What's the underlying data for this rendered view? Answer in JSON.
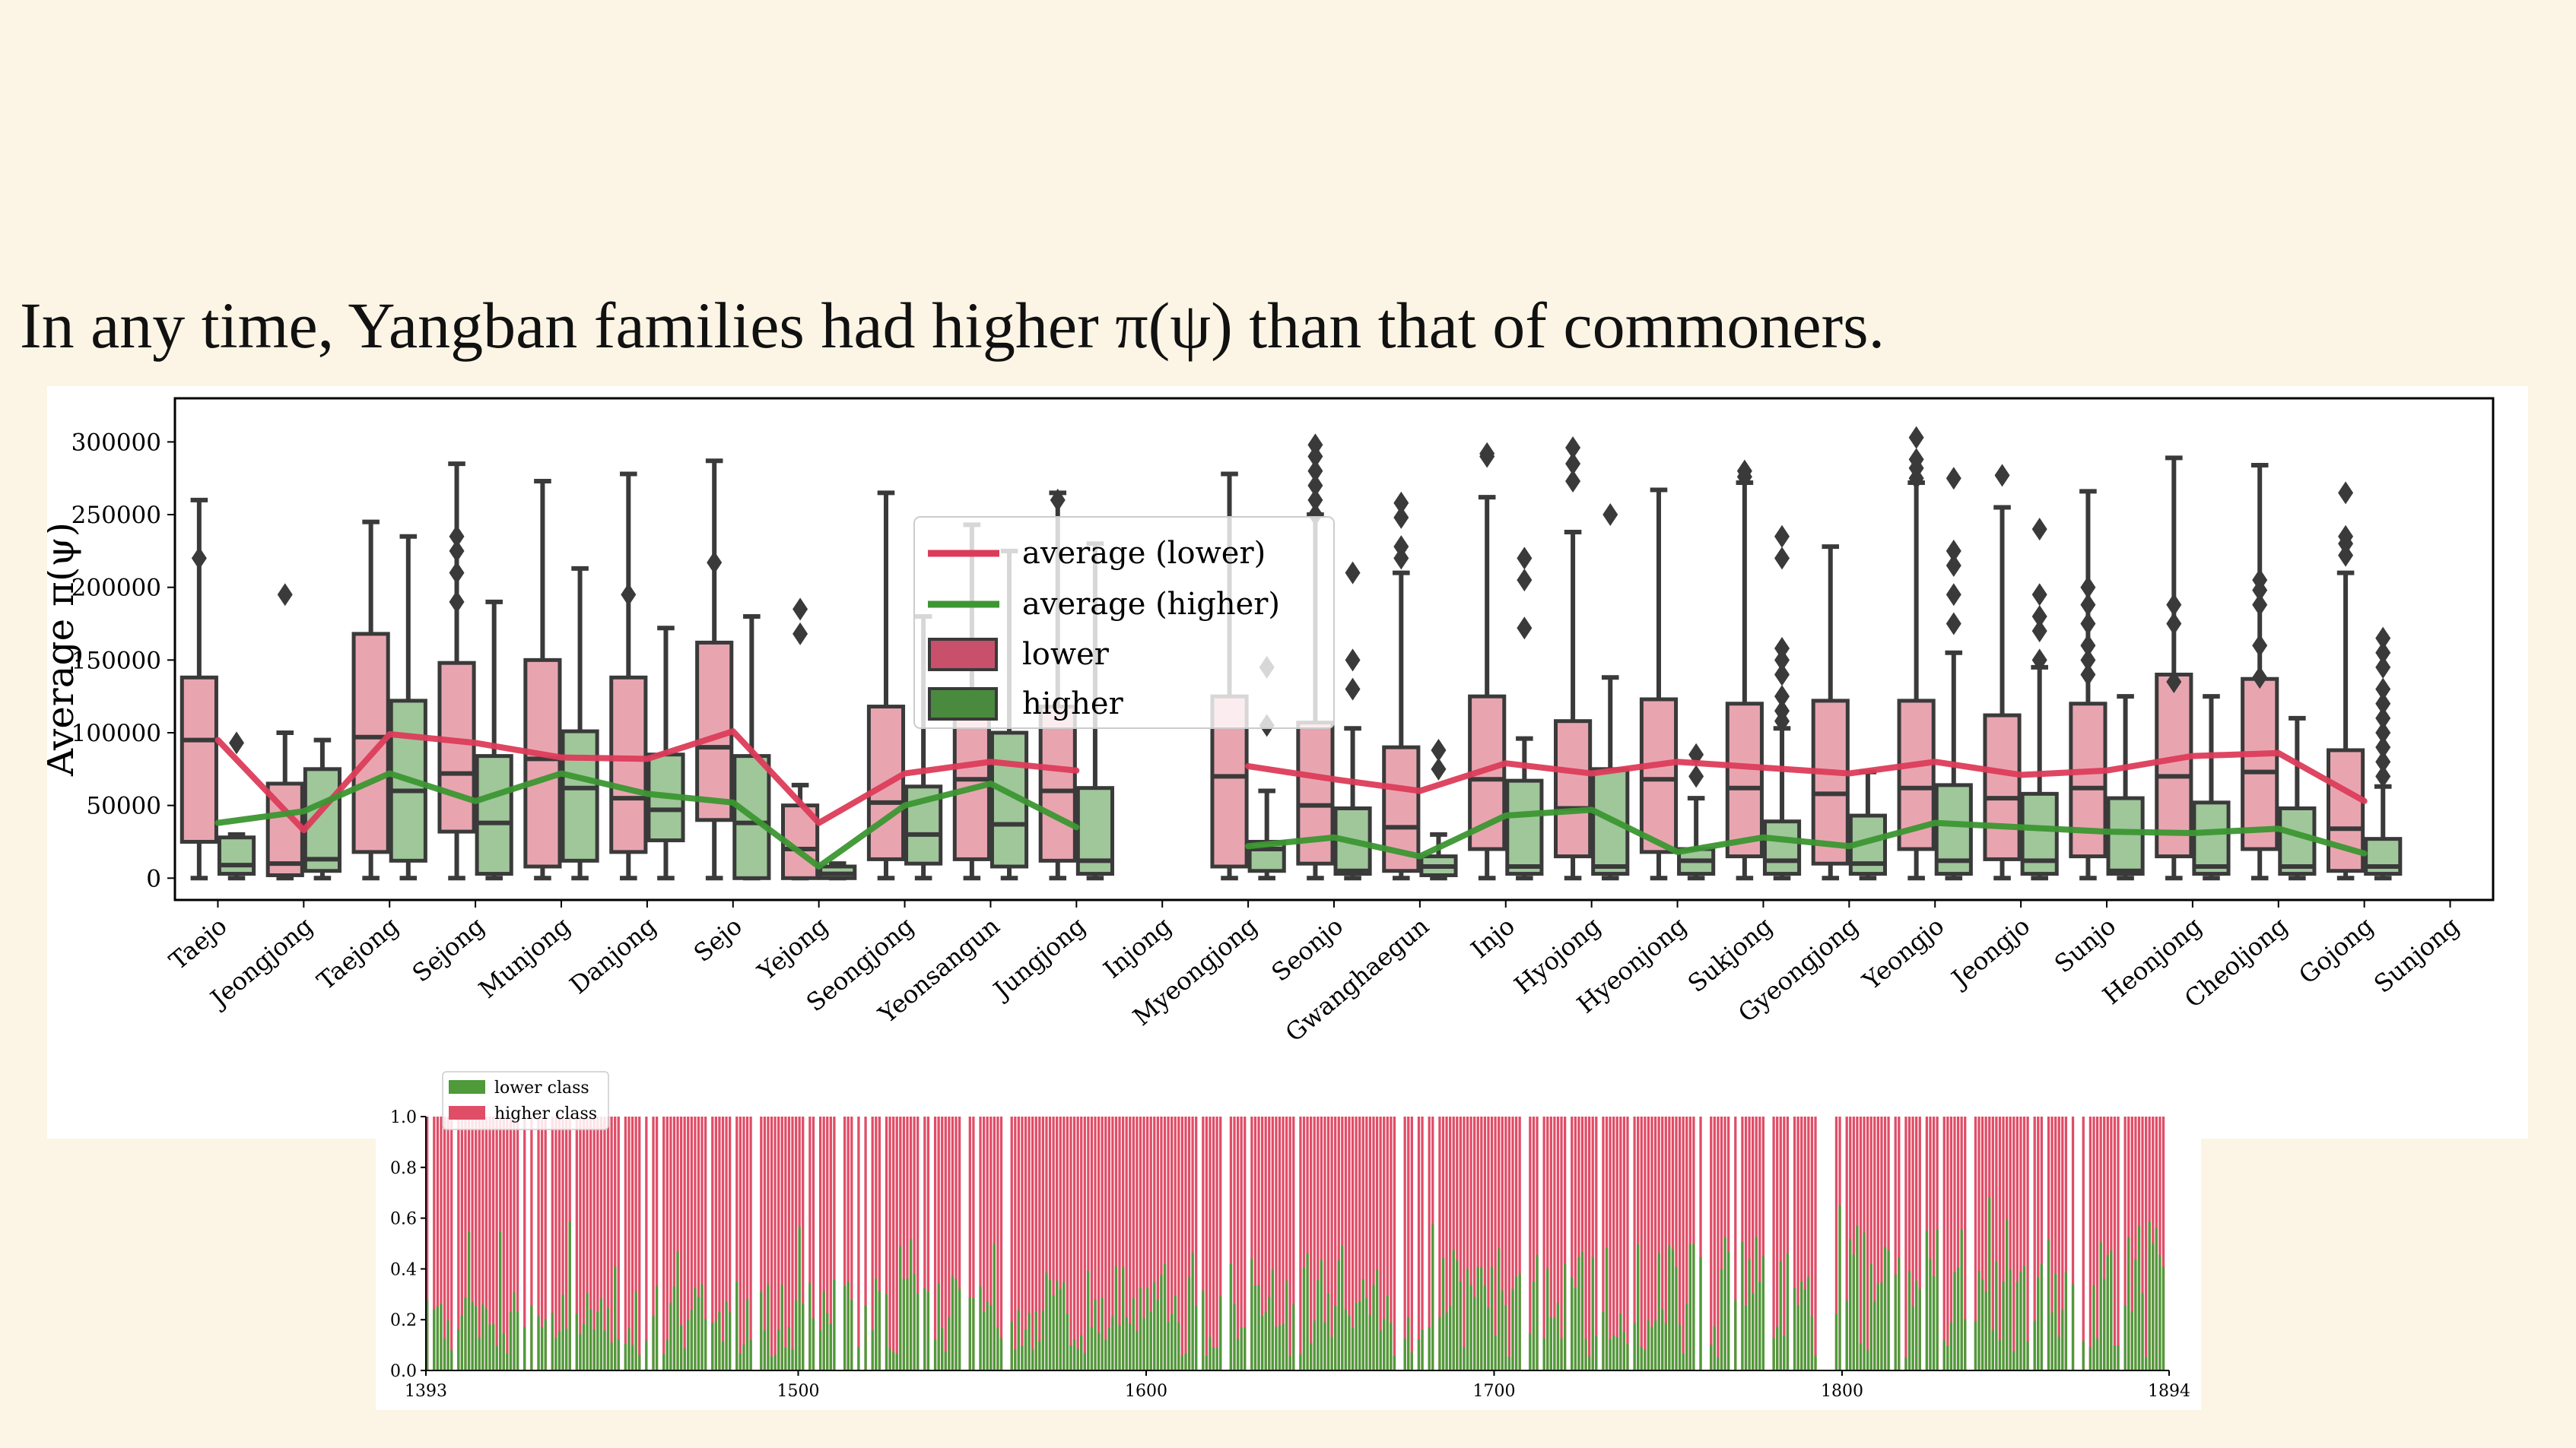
{
  "slide": {
    "title": "In any time, Yangban families had higher π(ψ) than that of commoners."
  },
  "colors": {
    "lower_line": "#dc3c5a",
    "higher_line": "#3c9632",
    "lower_box": "#e8a5b0",
    "higher_box": "#9fc79a",
    "lower_legend_patch": "#c8506a",
    "higher_legend_patch": "#4a8a3e",
    "bar_lower_class": "#4f9a3a",
    "bar_higher_class": "#e04d67"
  },
  "chart_data": [
    {
      "type": "box",
      "ylabel": "Average π(ψ)",
      "xlabel": "",
      "ylim": [
        -15000,
        330000
      ],
      "yticks": [
        0,
        50000,
        100000,
        150000,
        200000,
        250000,
        300000
      ],
      "legend": {
        "placement": "upper-center",
        "entries": [
          "average (lower)",
          "average (higher)",
          "lower",
          "higher"
        ]
      },
      "categories": [
        "Taejo",
        "Jeongjong",
        "Taejong",
        "Sejong",
        "Munjong",
        "Danjong",
        "Sejo",
        "Yejong",
        "Seongjong",
        "Yeonsangun",
        "Jungjong",
        "Injong",
        "Myeongjong",
        "Seonjo",
        "Gwanghaegun",
        "Injo",
        "Hyojong",
        "Hyeonjong",
        "Sukjong",
        "Gyeongjong",
        "Yeongjo",
        "Jeongjo",
        "Sunjo",
        "Heonjong",
        "Cheoljong",
        "Gojong",
        "Sunjong"
      ],
      "series": [
        {
          "name": "lower",
          "boxes": [
            [
              0,
              25000,
              95000,
              138000,
              260000
            ],
            [
              0,
              2000,
              10000,
              65000,
              100000
            ],
            [
              0,
              18000,
              97000,
              168000,
              245000
            ],
            [
              0,
              32000,
              72000,
              148000,
              285000
            ],
            [
              0,
              8000,
              82000,
              150000,
              273000
            ],
            [
              0,
              18000,
              55000,
              138000,
              278000
            ],
            [
              0,
              40000,
              90000,
              162000,
              287000
            ],
            [
              0,
              0,
              20000,
              50000,
              64000
            ],
            [
              0,
              13000,
              52000,
              118000,
              265000
            ],
            [
              0,
              13000,
              68000,
              125000,
              243000
            ],
            [
              0,
              12000,
              60000,
              118000,
              265000
            ],
            null,
            [
              0,
              8000,
              70000,
              125000,
              278000
            ],
            [
              0,
              10000,
              50000,
              107000,
              250000
            ],
            [
              0,
              5000,
              35000,
              90000,
              210000
            ],
            [
              0,
              20000,
              68000,
              125000,
              262000
            ],
            [
              0,
              15000,
              48000,
              108000,
              238000
            ],
            [
              0,
              18000,
              68000,
              123000,
              267000
            ],
            [
              0,
              15000,
              62000,
              120000,
              272000
            ],
            [
              0,
              10000,
              58000,
              122000,
              228000
            ],
            [
              0,
              20000,
              62000,
              122000,
              272000
            ],
            [
              0,
              13000,
              55000,
              112000,
              255000
            ],
            [
              0,
              15000,
              62000,
              120000,
              266000
            ],
            [
              0,
              15000,
              70000,
              140000,
              289000
            ],
            [
              0,
              20000,
              73000,
              137000,
              284000
            ],
            [
              0,
              5000,
              34000,
              88000,
              210000
            ],
            null
          ],
          "outliers": [
            [
              220000
            ],
            [
              195000
            ],
            [],
            [
              235000,
              225000,
              210000,
              190000
            ],
            [],
            [
              195000
            ],
            [
              217000
            ],
            [
              185000,
              168000
            ],
            [],
            [],
            [
              260000
            ],
            [],
            [],
            [
              298000,
              290000,
              280000,
              270000,
              260000,
              250000
            ],
            [
              258000,
              248000,
              228000,
              220000
            ],
            [
              292000,
              290000
            ],
            [
              296000,
              285000,
              273000
            ],
            [],
            [
              280000,
              276000
            ],
            [],
            [
              303000,
              288000,
              282000,
              275000
            ],
            [
              277000
            ],
            [
              200000,
              188000,
              175000,
              160000,
              150000,
              140000
            ],
            [
              188000,
              175000,
              135000
            ],
            [
              205000,
              198000,
              188000,
              160000,
              138000
            ],
            [
              265000,
              235000,
              230000,
              222000
            ],
            []
          ],
          "averages": [
            95000,
            33000,
            99000,
            93000,
            83000,
            82000,
            101000,
            38000,
            72000,
            80000,
            74000,
            null,
            77000,
            68000,
            60000,
            79000,
            72000,
            80000,
            76000,
            72000,
            80000,
            71000,
            74000,
            84000,
            86000,
            53000,
            null
          ]
        },
        {
          "name": "higher",
          "boxes": [
            [
              0,
              3000,
              9000,
              28000,
              30000
            ],
            [
              0,
              5000,
              13000,
              75000,
              95000
            ],
            [
              0,
              12000,
              60000,
              122000,
              235000
            ],
            [
              0,
              3000,
              38000,
              84000,
              190000
            ],
            [
              0,
              12000,
              62000,
              101000,
              213000
            ],
            [
              0,
              26000,
              47000,
              85000,
              172000
            ],
            [
              0,
              0,
              38000,
              84000,
              180000
            ],
            [
              0,
              0,
              3000,
              8000,
              10000
            ],
            [
              0,
              10000,
              30000,
              63000,
              180000
            ],
            [
              0,
              8000,
              37000,
              100000,
              225000
            ],
            [
              0,
              3000,
              12000,
              62000,
              230000
            ],
            null,
            [
              0,
              5000,
              20000,
              25000,
              60000
            ],
            [
              0,
              3000,
              5000,
              48000,
              103000
            ],
            [
              0,
              2000,
              8000,
              15000,
              30000
            ],
            [
              0,
              3000,
              8000,
              67000,
              96000
            ],
            [
              0,
              3000,
              8000,
              75000,
              138000
            ],
            [
              0,
              3000,
              12000,
              20000,
              55000
            ],
            [
              0,
              3000,
              12000,
              39000,
              103000
            ],
            [
              0,
              3000,
              10000,
              43000,
              73000
            ],
            [
              0,
              3000,
              12000,
              64000,
              155000
            ],
            [
              0,
              3000,
              12000,
              58000,
              145000
            ],
            [
              0,
              3000,
              5000,
              55000,
              125000
            ],
            [
              0,
              3000,
              8000,
              52000,
              125000
            ],
            [
              0,
              3000,
              8000,
              48000,
              110000
            ],
            [
              0,
              3000,
              8000,
              27000,
              63000
            ],
            null
          ],
          "outliers": [
            [
              93000
            ],
            [],
            [],
            [],
            [],
            [],
            [],
            [],
            [],
            [],
            [],
            [],
            [
              145000,
              105000
            ],
            [
              210000,
              150000,
              130000
            ],
            [
              88000,
              75000
            ],
            [
              220000,
              205000,
              172000
            ],
            [
              250000
            ],
            [
              85000,
              70000
            ],
            [
              235000,
              220000,
              158000,
              150000,
              140000,
              125000,
              115000,
              108000
            ],
            [],
            [
              275000,
              225000,
              215000,
              195000,
              175000
            ],
            [
              240000,
              195000,
              180000,
              170000,
              150000
            ],
            [],
            [],
            [],
            [
              165000,
              155000,
              145000,
              130000,
              120000,
              110000,
              100000,
              90000,
              80000,
              70000
            ],
            []
          ],
          "averages": [
            38000,
            46000,
            72000,
            53000,
            72000,
            58000,
            52000,
            8000,
            50000,
            65000,
            35000,
            null,
            22000,
            28000,
            15000,
            43000,
            47000,
            18000,
            28000,
            22000,
            38000,
            35000,
            32000,
            31000,
            34000,
            17000,
            null
          ]
        }
      ]
    },
    {
      "type": "bar",
      "stacked": true,
      "xlim": [
        1393,
        1894
      ],
      "xticks": [
        1393,
        1500,
        1600,
        1700,
        1800,
        1894
      ],
      "ylim": [
        0.0,
        1.0
      ],
      "yticks": [
        "0.0",
        "0.2",
        "0.4",
        "0.6",
        "0.8",
        "1.0"
      ],
      "legend": {
        "placement": "top-left",
        "entries": [
          "lower class",
          "higher class"
        ]
      },
      "series": [
        {
          "name": "lower class",
          "note": "green bottom segment"
        },
        {
          "name": "higher class",
          "note": "red top segment, fills to 1.0"
        }
      ]
    }
  ]
}
